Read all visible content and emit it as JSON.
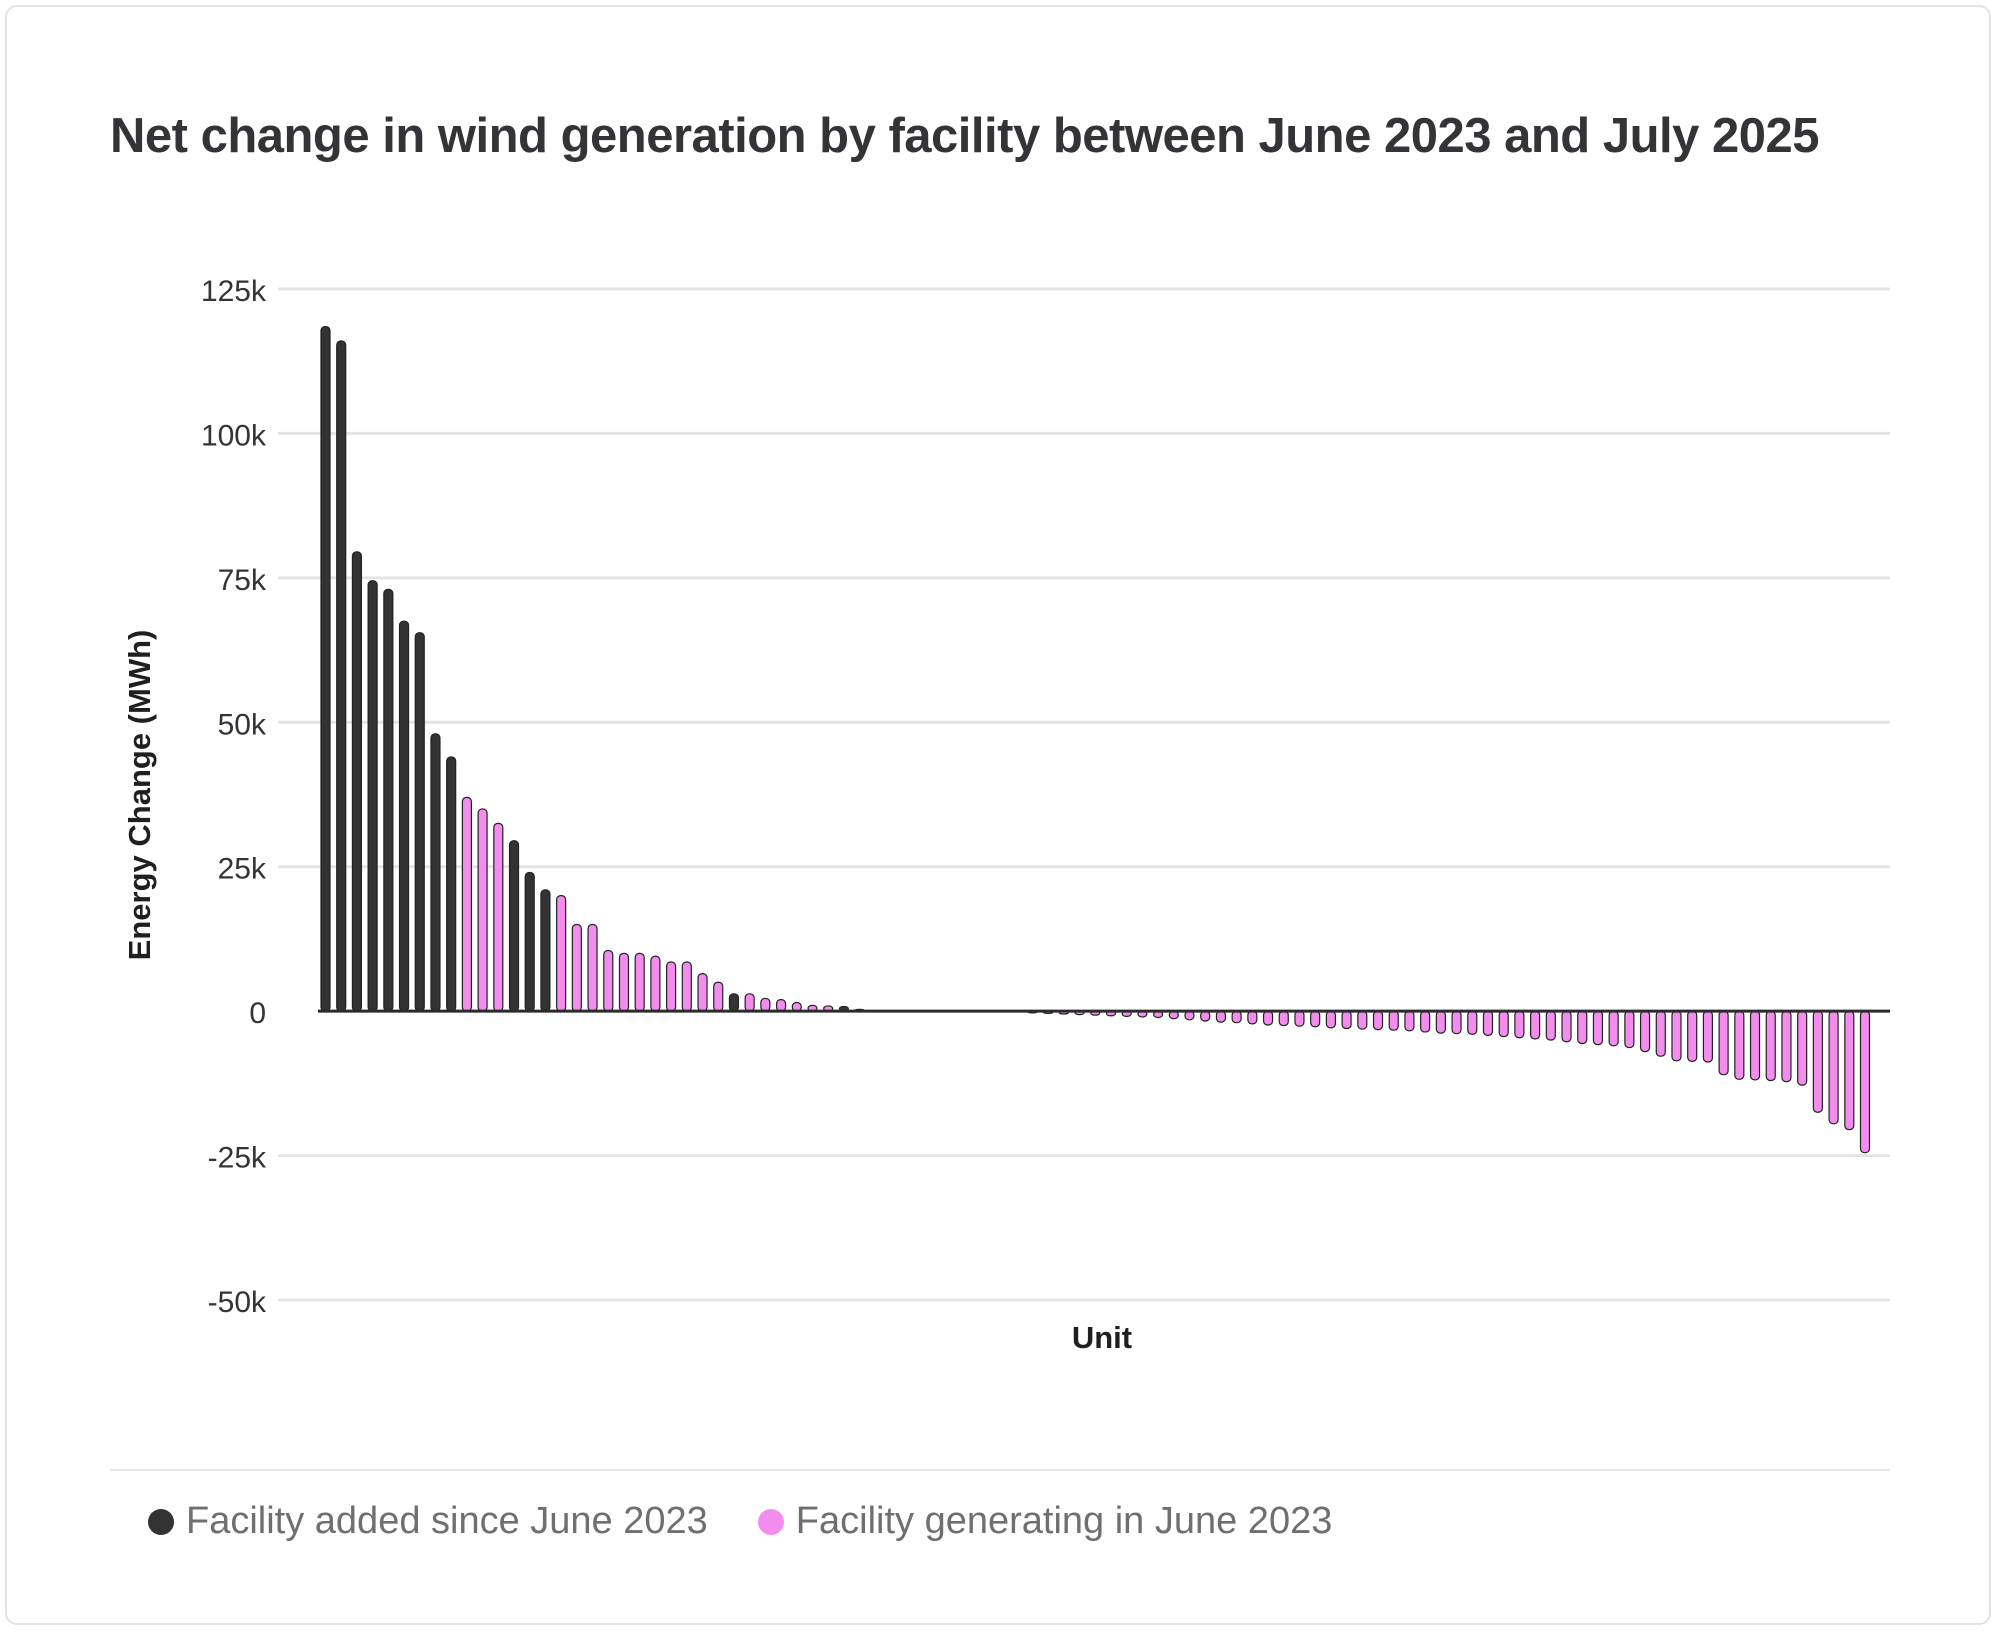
{
  "chart_data": {
    "type": "bar",
    "title": "Net change in wind generation by facility between June 2023 and July 2025",
    "xlabel": "Unit",
    "ylabel": "Energy Change (MWh)",
    "ylim": [
      -50000,
      125000
    ],
    "yticks": [
      -50000,
      -25000,
      0,
      25000,
      50000,
      75000,
      100000,
      125000
    ],
    "ytick_labels": [
      "-50k",
      "-25k",
      "0",
      "25k",
      "50k",
      "75k",
      "100k",
      "125k"
    ],
    "grid": true,
    "legend_position": "bottom-left",
    "series": [
      {
        "name": "Facility added since June 2023",
        "color": "#333333"
      },
      {
        "name": "Facility generating in June 2023",
        "color": "#f28ded"
      }
    ],
    "bars": [
      {
        "s": 0,
        "v": 118500
      },
      {
        "s": 0,
        "v": 116000
      },
      {
        "s": 0,
        "v": 79500
      },
      {
        "s": 0,
        "v": 74500
      },
      {
        "s": 0,
        "v": 73000
      },
      {
        "s": 0,
        "v": 67500
      },
      {
        "s": 0,
        "v": 65500
      },
      {
        "s": 0,
        "v": 48000
      },
      {
        "s": 0,
        "v": 44000
      },
      {
        "s": 1,
        "v": 37000
      },
      {
        "s": 1,
        "v": 35000
      },
      {
        "s": 1,
        "v": 32500
      },
      {
        "s": 0,
        "v": 29500
      },
      {
        "s": 0,
        "v": 24000
      },
      {
        "s": 0,
        "v": 21000
      },
      {
        "s": 1,
        "v": 20000
      },
      {
        "s": 1,
        "v": 15000
      },
      {
        "s": 1,
        "v": 15000
      },
      {
        "s": 1,
        "v": 10500
      },
      {
        "s": 1,
        "v": 10000
      },
      {
        "s": 1,
        "v": 10000
      },
      {
        "s": 1,
        "v": 9500
      },
      {
        "s": 1,
        "v": 8500
      },
      {
        "s": 1,
        "v": 8500
      },
      {
        "s": 1,
        "v": 6500
      },
      {
        "s": 1,
        "v": 5000
      },
      {
        "s": 0,
        "v": 3000
      },
      {
        "s": 1,
        "v": 3000
      },
      {
        "s": 1,
        "v": 2200
      },
      {
        "s": 1,
        "v": 2000
      },
      {
        "s": 1,
        "v": 1500
      },
      {
        "s": 1,
        "v": 1000
      },
      {
        "s": 1,
        "v": 900
      },
      {
        "s": 0,
        "v": 800
      },
      {
        "s": 1,
        "v": 300
      },
      {
        "s": 1,
        "v": 0
      },
      {
        "s": 1,
        "v": 0
      },
      {
        "s": 1,
        "v": 0
      },
      {
        "s": 1,
        "v": 0
      },
      {
        "s": 1,
        "v": 0
      },
      {
        "s": 1,
        "v": 0
      },
      {
        "s": 1,
        "v": 0
      },
      {
        "s": 1,
        "v": 0
      },
      {
        "s": 1,
        "v": 0
      },
      {
        "s": 1,
        "v": 0
      },
      {
        "s": 1,
        "v": -300
      },
      {
        "s": 1,
        "v": -400
      },
      {
        "s": 1,
        "v": -500
      },
      {
        "s": 1,
        "v": -600
      },
      {
        "s": 1,
        "v": -700
      },
      {
        "s": 1,
        "v": -800
      },
      {
        "s": 1,
        "v": -900
      },
      {
        "s": 1,
        "v": -1000
      },
      {
        "s": 1,
        "v": -1100
      },
      {
        "s": 1,
        "v": -1300
      },
      {
        "s": 1,
        "v": -1500
      },
      {
        "s": 1,
        "v": -1700
      },
      {
        "s": 1,
        "v": -1900
      },
      {
        "s": 1,
        "v": -2000
      },
      {
        "s": 1,
        "v": -2200
      },
      {
        "s": 1,
        "v": -2400
      },
      {
        "s": 1,
        "v": -2500
      },
      {
        "s": 1,
        "v": -2600
      },
      {
        "s": 1,
        "v": -2700
      },
      {
        "s": 1,
        "v": -2900
      },
      {
        "s": 1,
        "v": -3000
      },
      {
        "s": 1,
        "v": -3100
      },
      {
        "s": 1,
        "v": -3200
      },
      {
        "s": 1,
        "v": -3300
      },
      {
        "s": 1,
        "v": -3400
      },
      {
        "s": 1,
        "v": -3600
      },
      {
        "s": 1,
        "v": -3800
      },
      {
        "s": 1,
        "v": -3900
      },
      {
        "s": 1,
        "v": -4000
      },
      {
        "s": 1,
        "v": -4200
      },
      {
        "s": 1,
        "v": -4400
      },
      {
        "s": 1,
        "v": -4600
      },
      {
        "s": 1,
        "v": -4800
      },
      {
        "s": 1,
        "v": -5000
      },
      {
        "s": 1,
        "v": -5300
      },
      {
        "s": 1,
        "v": -5600
      },
      {
        "s": 1,
        "v": -5800
      },
      {
        "s": 1,
        "v": -6000
      },
      {
        "s": 1,
        "v": -6300
      },
      {
        "s": 1,
        "v": -7000
      },
      {
        "s": 1,
        "v": -7800
      },
      {
        "s": 1,
        "v": -8600
      },
      {
        "s": 1,
        "v": -8700
      },
      {
        "s": 1,
        "v": -8800
      },
      {
        "s": 1,
        "v": -11000
      },
      {
        "s": 1,
        "v": -11800
      },
      {
        "s": 1,
        "v": -11900
      },
      {
        "s": 1,
        "v": -12000
      },
      {
        "s": 1,
        "v": -12200
      },
      {
        "s": 1,
        "v": -12800
      },
      {
        "s": 1,
        "v": -17500
      },
      {
        "s": 1,
        "v": -19500
      },
      {
        "s": 1,
        "v": -20500
      },
      {
        "s": 1,
        "v": -24500
      }
    ]
  }
}
